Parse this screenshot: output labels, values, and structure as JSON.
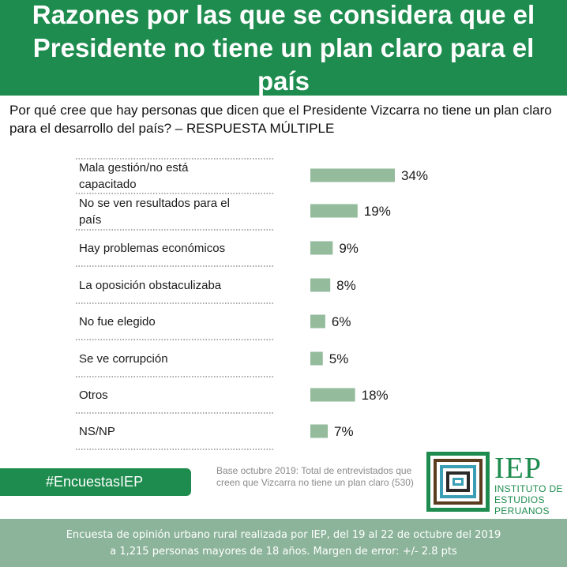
{
  "header": {
    "title": "Razones por las que se considera que el Presidente no tiene un plan claro para el país"
  },
  "question": "Por qué cree que hay personas que dicen que el Presidente Vizcarra no tiene un plan claro para el desarrollo  del país? – RESPUESTA MÚLTIPLE",
  "chart_data": {
    "type": "bar",
    "orientation": "horizontal",
    "categories": [
      "Mala gestión/no está capacitado",
      "No se ven resultados para el país",
      "Hay problemas económicos",
      "La  oposición obstaculizaba",
      "No fue elegido",
      "Se ve corrupción",
      "Otros",
      "NS/NP"
    ],
    "category_lines": [
      [
        "Mala gestión/no está",
        "capacitado"
      ],
      [
        "No se ven resultados para el",
        "país"
      ],
      [
        "Hay problemas económicos"
      ],
      [
        "La  oposición obstaculizaba"
      ],
      [
        "No fue elegido"
      ],
      [
        "Se ve corrupción"
      ],
      [
        "Otros"
      ],
      [
        "NS/NP"
      ]
    ],
    "values": [
      34,
      19,
      9,
      8,
      6,
      5,
      18,
      7
    ],
    "value_labels": [
      "34%",
      "19%",
      "9%",
      "8%",
      "6%",
      "5%",
      "18%",
      "7%"
    ],
    "unit": "%",
    "xlim": [
      0,
      100
    ],
    "bar_color": "#93bb9c",
    "grid": false
  },
  "hashtag": "#EncuestasIEP",
  "base_note": "Base octubre 2019: Total de entrevistados que creen que Vizcarra no tiene un plan claro (530)",
  "logo": {
    "acronym": "IEP",
    "line1": "INSTITUTO DE",
    "line2": "ESTUDIOS",
    "line3": "PERUANOS"
  },
  "footer": {
    "line1": "Encuesta de opinión urbano rural realizada por IEP, del 19 al 22 de octubre del 2019",
    "line2": "a 1,215 personas mayores de 18 años. Margen de error: +/- 2.8 pts"
  },
  "colors": {
    "brand_green": "#1e8c4e",
    "footer_green": "#8cb49a",
    "bar": "#93bb9c"
  }
}
